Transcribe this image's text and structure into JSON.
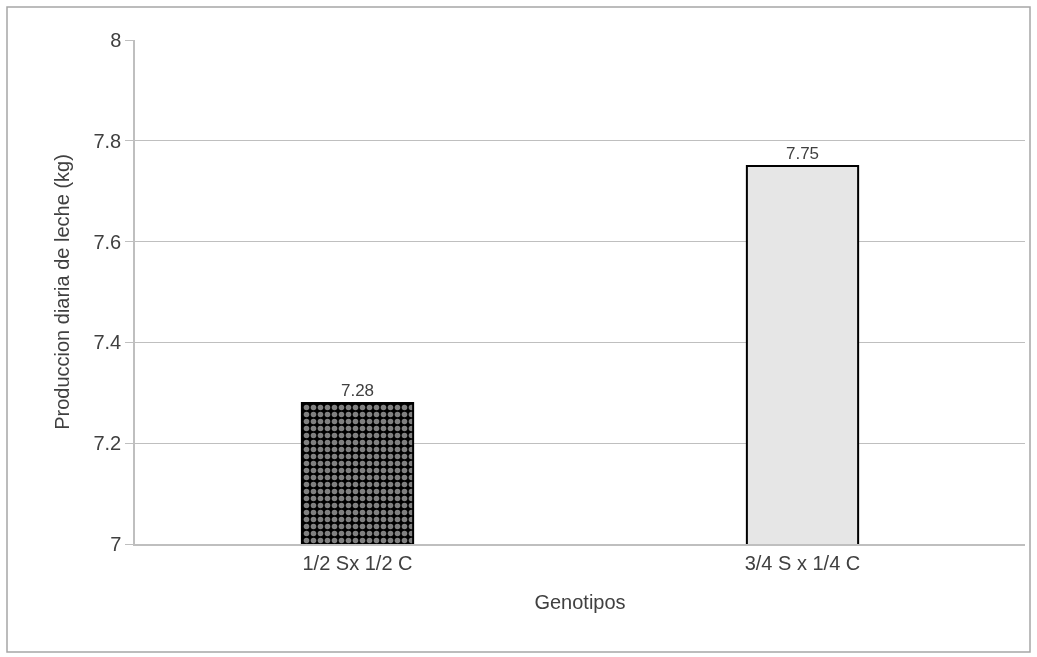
{
  "chart_data": {
    "type": "bar",
    "xlabel": "Genotipos",
    "ylabel": "Produccion diaria de leche (kg)",
    "categories": [
      "1/2 Sx 1/2 C",
      "3/4 S x 1/4 C"
    ],
    "values": [
      7.28,
      7.75
    ],
    "colors": [
      "#000000",
      "#e6e6e6"
    ],
    "ylim": [
      7,
      8
    ],
    "yticks": [
      7,
      7.2,
      7.4,
      7.6,
      7.8,
      8
    ],
    "grid": "y",
    "data_labels": true
  }
}
